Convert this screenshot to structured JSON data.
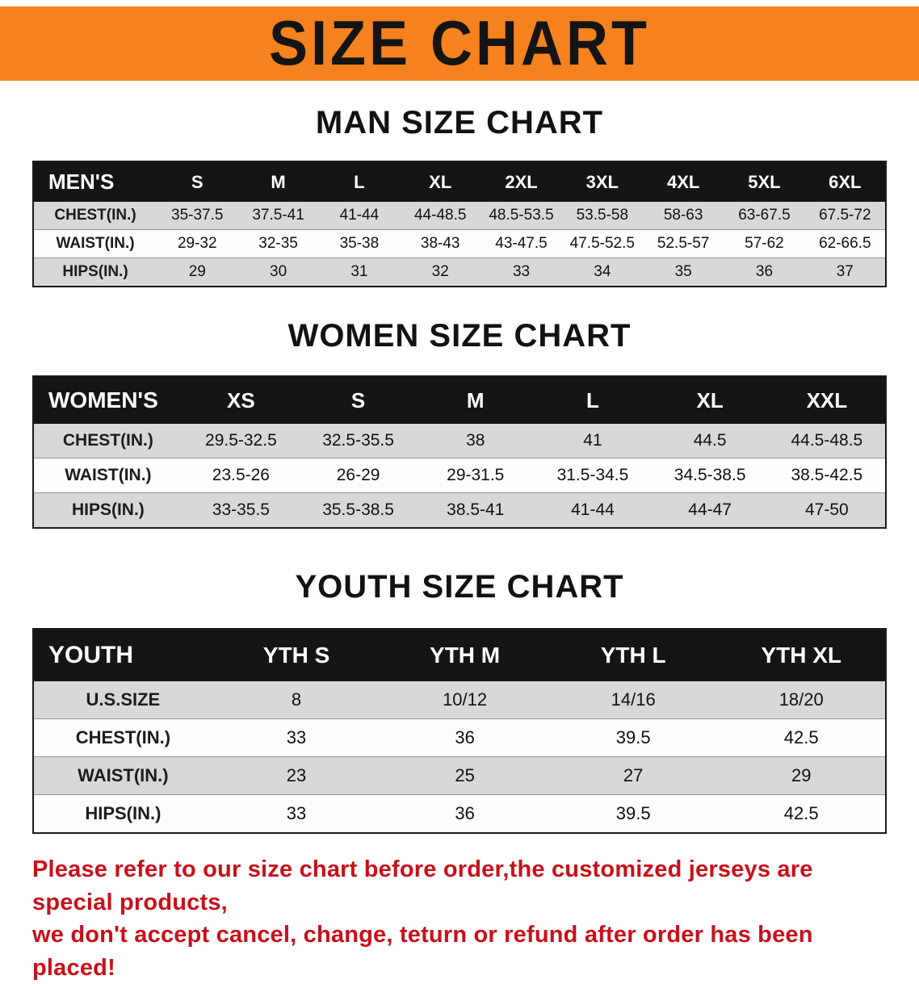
{
  "banner": {
    "title": "SIZE CHART",
    "bg_color": "#f5821e"
  },
  "men": {
    "heading": "MAN SIZE CHART",
    "table": {
      "header": [
        "MEN'S",
        "S",
        "M",
        "L",
        "XL",
        "2XL",
        "3XL",
        "4XL",
        "5XL",
        "6XL"
      ],
      "rows": [
        {
          "label": "CHEST(IN.)",
          "values": [
            "35-37.5",
            "37.5-41",
            "41-44",
            "44-48.5",
            "48.5-53.5",
            "53.5-58",
            "58-63",
            "63-67.5",
            "67.5-72"
          ]
        },
        {
          "label": "WAIST(IN.)",
          "values": [
            "29-32",
            "32-35",
            "35-38",
            "38-43",
            "43-47.5",
            "47.5-52.5",
            "52.5-57",
            "57-62",
            "62-66.5"
          ]
        },
        {
          "label": "HIPS(IN.)",
          "values": [
            "29",
            "30",
            "31",
            "32",
            "33",
            "34",
            "35",
            "36",
            "37"
          ]
        }
      ]
    }
  },
  "women": {
    "heading": "WOMEN SIZE CHART",
    "table": {
      "header": [
        "WOMEN'S",
        "XS",
        "S",
        "M",
        "L",
        "XL",
        "XXL"
      ],
      "rows": [
        {
          "label": "CHEST(IN.)",
          "values": [
            "29.5-32.5",
            "32.5-35.5",
            "38",
            "41",
            "44.5",
            "44.5-48.5"
          ]
        },
        {
          "label": "WAIST(IN.)",
          "values": [
            "23.5-26",
            "26-29",
            "29-31.5",
            "31.5-34.5",
            "34.5-38.5",
            "38.5-42.5"
          ]
        },
        {
          "label": "HIPS(IN.)",
          "values": [
            "33-35.5",
            "35.5-38.5",
            "38.5-41",
            "41-44",
            "44-47",
            "47-50"
          ]
        }
      ]
    }
  },
  "youth": {
    "heading": "YOUTH SIZE CHART",
    "table": {
      "header": [
        "YOUTH",
        "YTH S",
        "YTH M",
        "YTH L",
        "YTH XL"
      ],
      "rows": [
        {
          "label": "U.S.SIZE",
          "values": [
            "8",
            "10/12",
            "14/16",
            "18/20"
          ]
        },
        {
          "label": "CHEST(IN.)",
          "values": [
            "33",
            "36",
            "39.5",
            "42.5"
          ]
        },
        {
          "label": "WAIST(IN.)",
          "values": [
            "23",
            "25",
            "27",
            "29"
          ]
        },
        {
          "label": "HIPS(IN.)",
          "values": [
            "33",
            "36",
            "39.5",
            "42.5"
          ]
        }
      ]
    }
  },
  "disclaimer": {
    "line1": "Please refer to our size chart before order,the customized jerseys are special products,",
    "line2": "we don't accept cancel, change, teturn or refund after order has been placed!",
    "color": "#c8101a"
  }
}
